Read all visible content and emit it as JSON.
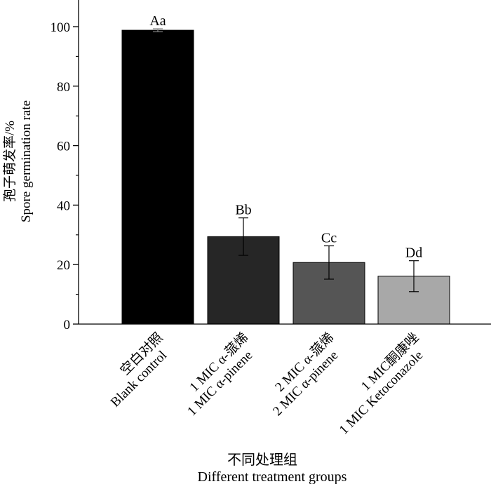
{
  "chart_data": {
    "type": "bar",
    "categories": [
      [
        "空白对照",
        "Blank control"
      ],
      [
        "1 MIC α-蒎烯",
        "1 MIC α-pinene"
      ],
      [
        "2 MIC α-蒎烯",
        "2 MIC α-pinene"
      ],
      [
        "1 MIC酮康唑",
        "1 MIC Ketoconazole"
      ]
    ],
    "values": [
      98.8,
      29.4,
      20.7,
      16.1
    ],
    "errors": [
      0.5,
      6.3,
      5.6,
      5.2
    ],
    "significance": [
      "Aa",
      "Bb",
      "Cc",
      "Dd"
    ],
    "colors": [
      "#000000",
      "#262626",
      "#555555",
      "#a8a8a8"
    ],
    "ylabel_cn": "孢子萌发率/%",
    "ylabel_en": "Spore germination rate",
    "xlabel_cn": "不同处理组",
    "xlabel_en": "Different treatment groups",
    "ylim": [
      0,
      110
    ],
    "yticks": [
      0,
      20,
      40,
      60,
      80,
      100
    ]
  }
}
